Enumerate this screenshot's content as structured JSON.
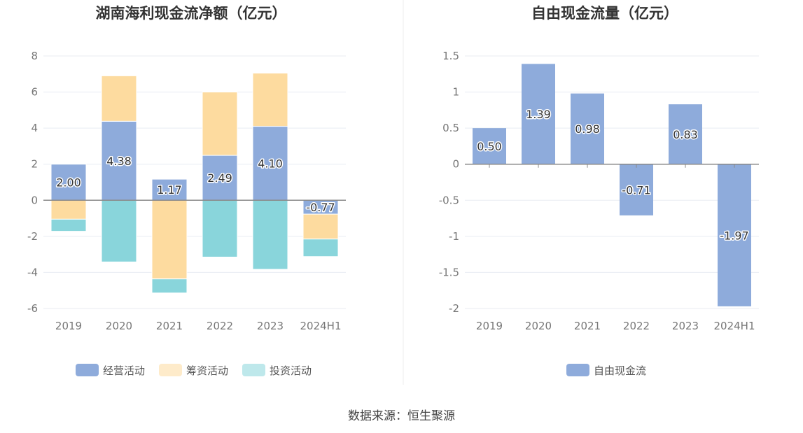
{
  "colors": {
    "operating": "#8eabdb",
    "financing": "#fddb9f",
    "investing": "#89d5db",
    "fcf": "#8eabdb",
    "axis": "#8a8a8a",
    "grid": "#e8ebf2",
    "label_text": "#333333",
    "tick_text": "#777777"
  },
  "chart_data": [
    {
      "type": "bar",
      "stacked": true,
      "title": "湖南海利现金流净额（亿元）",
      "categories": [
        "2019",
        "2020",
        "2021",
        "2022",
        "2023",
        "2024H1"
      ],
      "ylim": [
        -6,
        8
      ],
      "yticks": [
        -6,
        -4,
        -2,
        0,
        2,
        4,
        6,
        8
      ],
      "grid": true,
      "legend": "bottom",
      "series": [
        {
          "name": "经营活动",
          "color_key": "operating",
          "values": [
            2.0,
            4.38,
            1.17,
            2.49,
            4.1,
            -0.77
          ],
          "labels": [
            "2.00",
            "4.38",
            "1.17",
            "2.49",
            "4.10",
            "-0.77"
          ]
        },
        {
          "name": "筹资活动",
          "color_key": "financing",
          "values": [
            -1.05,
            2.52,
            -4.36,
            3.51,
            2.95,
            -1.38
          ]
        },
        {
          "name": "投资活动",
          "color_key": "investing",
          "values": [
            -0.67,
            -3.42,
            -0.78,
            -3.15,
            -3.83,
            -0.97
          ]
        }
      ]
    },
    {
      "type": "bar",
      "title": "自由现金流量（亿元）",
      "categories": [
        "2019",
        "2020",
        "2021",
        "2022",
        "2023",
        "2024H1"
      ],
      "ylim": [
        -2,
        1.5
      ],
      "yticks": [
        -2,
        -1.5,
        -1,
        -0.5,
        0,
        0.5,
        1,
        1.5
      ],
      "ytick_labels": [
        "-2",
        "-1.5",
        "-1",
        "-0.5",
        "0",
        "0.5",
        "1",
        "1.5"
      ],
      "grid": true,
      "legend": "bottom",
      "series": [
        {
          "name": "自由现金流",
          "color_key": "fcf",
          "values": [
            0.5,
            1.39,
            0.98,
            -0.71,
            0.83,
            -1.97
          ],
          "labels": [
            "0.50",
            "1.39",
            "0.98",
            "-0.71",
            "0.83",
            "-1.97"
          ]
        }
      ]
    }
  ],
  "source_text": "数据来源：恒生聚源"
}
